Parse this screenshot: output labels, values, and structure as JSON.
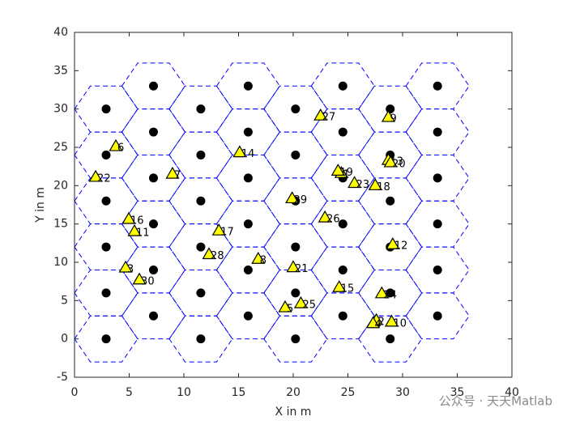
{
  "chart_data": {
    "type": "scatter",
    "xlabel": "X in m",
    "ylabel": "Y in m",
    "xlim": [
      0,
      40
    ],
    "ylim": [
      -5,
      40
    ],
    "xticks": [
      0,
      5,
      10,
      15,
      20,
      25,
      30,
      35,
      40
    ],
    "yticks": [
      -5,
      0,
      5,
      10,
      15,
      20,
      25,
      30,
      35,
      40
    ],
    "series": [
      {
        "color": "#000000",
        "x": [
          2.89,
          2.89,
          2.89,
          2.89,
          2.89,
          2.89,
          7.22,
          7.22,
          7.22,
          7.22,
          7.22,
          7.22,
          11.55,
          11.55,
          11.55,
          11.55,
          11.55,
          11.55,
          15.88,
          15.88,
          15.88,
          15.88,
          15.88,
          15.88,
          20.21,
          20.21,
          20.21,
          20.21,
          20.21,
          20.21,
          24.54,
          24.54,
          24.54,
          24.54,
          24.54,
          24.54,
          28.87,
          28.87,
          28.87,
          28.87,
          28.87,
          28.87,
          33.2,
          33.2,
          33.2,
          33.2,
          33.2,
          33.2
        ],
        "values": [
          0,
          6,
          12,
          18,
          24,
          30,
          3,
          9,
          15,
          21,
          27,
          33,
          0,
          6,
          12,
          18,
          24,
          30,
          3,
          9,
          15,
          21,
          27,
          33,
          0,
          6,
          12,
          18,
          24,
          30,
          3,
          9,
          15,
          21,
          27,
          33,
          0,
          6,
          12,
          18,
          24,
          30,
          3,
          9,
          15,
          21,
          27,
          33
        ]
      },
      {
        "color": "#ffff00",
        "x": [
          24.4,
          27.6,
          4.67,
          27.3,
          19.26,
          3.78,
          8.96,
          16.8,
          28.7,
          29.0,
          5.48,
          29.1,
          28.7,
          15.1,
          24.2,
          4.96,
          13.2,
          27.5,
          24.1,
          28.9,
          20.0,
          1.93,
          25.6,
          28.1,
          20.7,
          22.9,
          22.5,
          12.3,
          19.9,
          5.93
        ],
        "values": [
          21.6,
          2.4,
          9.26,
          2.0,
          4.08,
          25.1,
          21.5,
          10.4,
          28.9,
          2.2,
          14.0,
          12.3,
          23.3,
          24.3,
          6.7,
          15.6,
          14.1,
          20.0,
          21.9,
          23.0,
          9.3,
          21.1,
          20.3,
          5.9,
          4.6,
          15.8,
          29.1,
          11.0,
          18.3,
          7.7
        ],
        "labels": [
          1,
          2,
          3,
          4,
          5,
          6,
          7,
          8,
          9,
          10,
          11,
          12,
          13,
          14,
          15,
          16,
          17,
          18,
          19,
          20,
          21,
          22,
          23,
          24,
          25,
          26,
          27,
          28,
          29,
          30
        ]
      }
    ],
    "watermark": "公众号 · 天天Matlab"
  }
}
